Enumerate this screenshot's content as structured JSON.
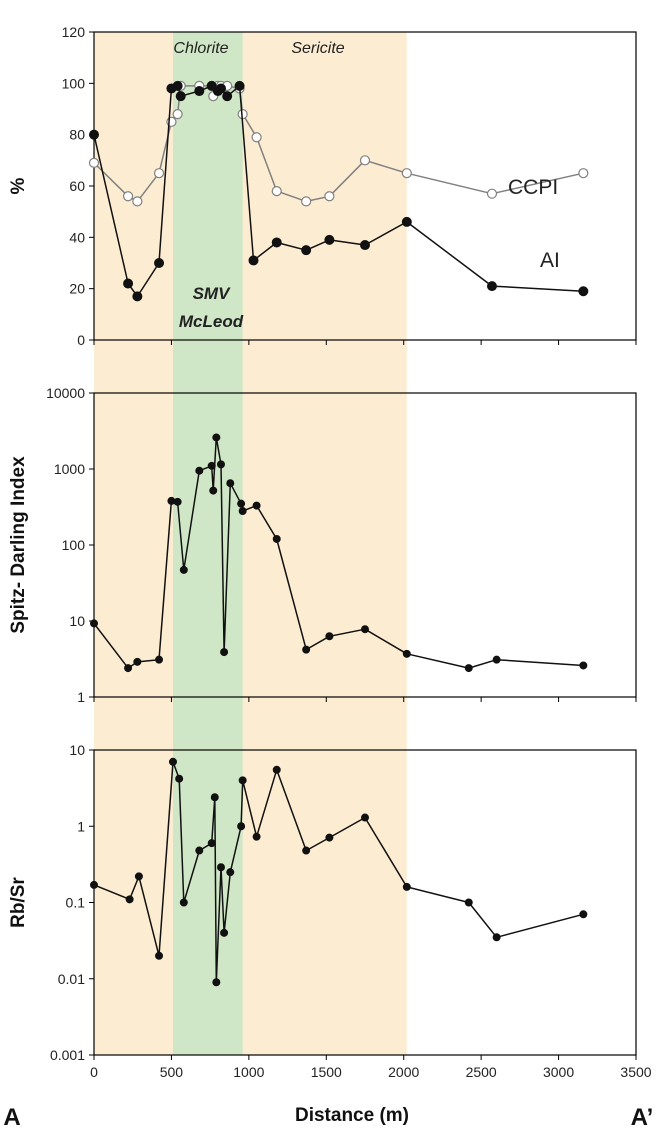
{
  "colors": {
    "sericite_band": "#fcecd1",
    "chlorite_band": "#cfe7c6",
    "ai_series": "#111111",
    "ccpi_series": "#808080",
    "frame": "#000000"
  },
  "figure": {
    "x_axis_title": "Distance (m)",
    "left_end_label": "A",
    "right_end_label": "A’",
    "zones": {
      "chlorite_label": "Chlorite",
      "sericite_label": "Sericite",
      "smv_label": "SMV",
      "mcleod_label": "McLeod"
    }
  },
  "chart_data": [
    {
      "type": "line",
      "ylabel": "%",
      "xlabel": "",
      "xlim": [
        0,
        3500
      ],
      "ylim": [
        0,
        120
      ],
      "y_scale": "linear",
      "yticks": [
        "0",
        "20",
        "40",
        "60",
        "80",
        "100",
        "120"
      ],
      "grid": false,
      "legend": "inline labels at right",
      "shaded_ranges": [
        {
          "zone": "Sericite",
          "x": [
            0,
            2020
          ]
        },
        {
          "zone": "Chlorite",
          "x": [
            510,
            960
          ]
        }
      ],
      "series": [
        {
          "name": "CCPI",
          "marker": "open-circle",
          "x": [
            0,
            220,
            280,
            420,
            500,
            540,
            560,
            680,
            760,
            770,
            800,
            820,
            860,
            940,
            960,
            1050,
            1180,
            1370,
            1520,
            1750,
            2020,
            2570,
            3160
          ],
          "y": [
            69,
            56,
            54,
            65,
            85,
            88,
            99,
            99,
            99,
            95,
            99,
            99,
            99,
            98,
            88,
            79,
            58,
            54,
            56,
            70,
            65,
            57,
            65
          ]
        },
        {
          "name": "AI",
          "marker": "filled-circle",
          "x": [
            0,
            220,
            280,
            420,
            500,
            540,
            560,
            680,
            760,
            800,
            820,
            860,
            940,
            1030,
            1180,
            1370,
            1520,
            1750,
            2020,
            2570,
            3160
          ],
          "y": [
            80,
            22,
            17,
            30,
            98,
            99,
            95,
            97,
            99,
            97,
            98,
            95,
            99,
            31,
            38,
            35,
            39,
            37,
            46,
            21,
            19
          ]
        }
      ]
    },
    {
      "type": "line",
      "ylabel": "Spitz- Darling Index",
      "xlabel": "",
      "xlim": [
        0,
        3500
      ],
      "ylim": [
        1,
        10000
      ],
      "y_scale": "log",
      "yticks": [
        "1",
        "10",
        "100",
        "1000",
        "10000"
      ],
      "grid": false,
      "series": [
        {
          "name": "",
          "marker": "filled-circle",
          "x": [
            0,
            220,
            280,
            420,
            500,
            540,
            580,
            680,
            760,
            770,
            790,
            820,
            840,
            880,
            950,
            960,
            1050,
            1180,
            1370,
            1520,
            1750,
            2020,
            2420,
            2600,
            3160
          ],
          "y": [
            9.3,
            2.4,
            2.9,
            3.1,
            380,
            370,
            47,
            950,
            1100,
            520,
            2600,
            1150,
            3.9,
            650,
            350,
            280,
            330,
            120,
            4.2,
            6.3,
            7.8,
            3.7,
            2.4,
            3.1,
            2.6
          ]
        }
      ]
    },
    {
      "type": "line",
      "ylabel": "Rb/Sr",
      "xlabel": "Distance (m)",
      "xlim": [
        0,
        3500
      ],
      "ylim": [
        0.001,
        10
      ],
      "y_scale": "log",
      "yticks": [
        "0.001",
        "0.01",
        "0.1",
        "1",
        "10"
      ],
      "xticks": [
        "0",
        "500",
        "1000",
        "1500",
        "2000",
        "2500",
        "3000",
        "3500"
      ],
      "grid": false,
      "series": [
        {
          "name": "",
          "marker": "filled-circle",
          "x": [
            0,
            230,
            290,
            420,
            510,
            550,
            580,
            680,
            760,
            780,
            790,
            820,
            840,
            880,
            950,
            960,
            1050,
            1180,
            1370,
            1520,
            1750,
            2020,
            2420,
            2600,
            3160
          ],
          "y": [
            0.17,
            0.11,
            0.22,
            0.02,
            7.0,
            4.2,
            0.1,
            0.48,
            0.6,
            2.4,
            0.009,
            0.29,
            0.04,
            0.25,
            1.0,
            4.0,
            0.73,
            5.5,
            0.48,
            0.71,
            1.3,
            0.16,
            0.1,
            0.035,
            0.07
          ]
        }
      ]
    }
  ]
}
